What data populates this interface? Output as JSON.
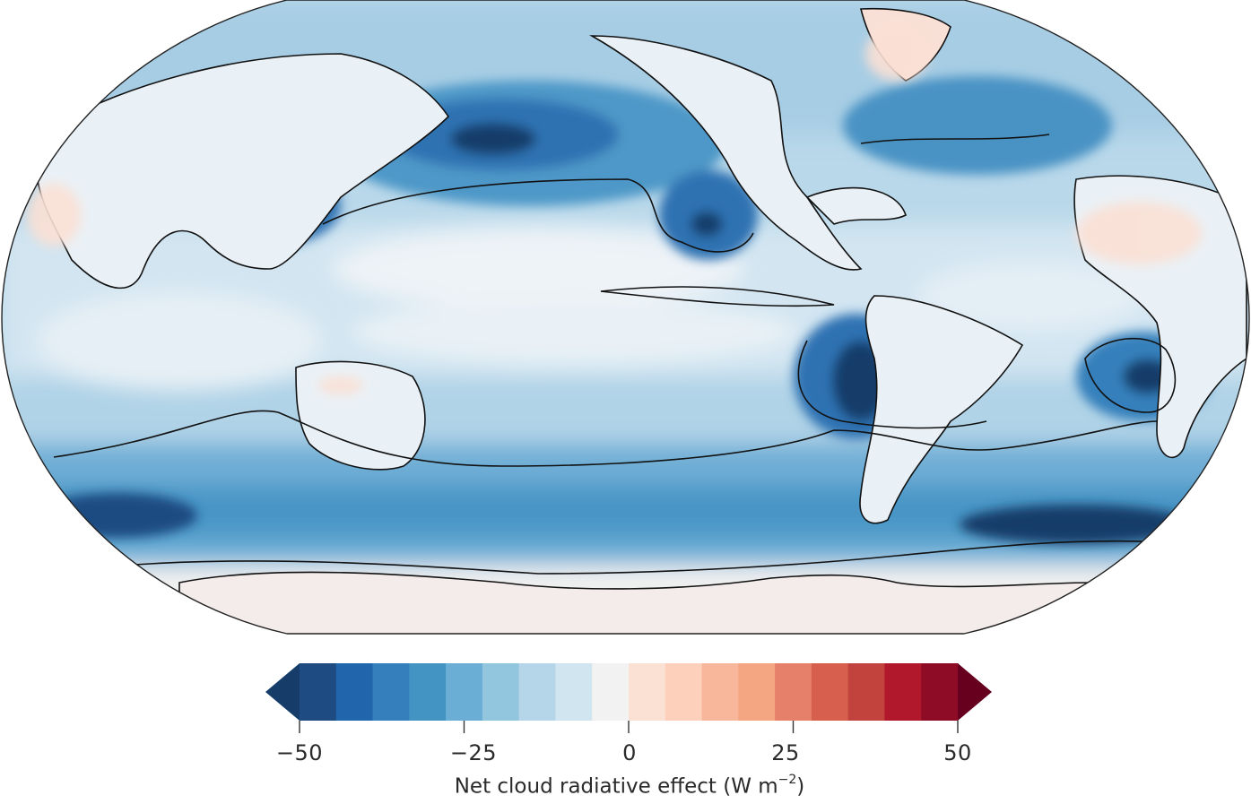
{
  "map": {
    "projection": "Robinson",
    "central_longitude": 180,
    "contour_lines": "black",
    "land_outlines": "black"
  },
  "colorbar": {
    "label_text": "Net cloud radiative effect (W m",
    "label_exponent": "−2",
    "label_close": ")",
    "ticks": [
      {
        "value": -50,
        "label": "−50"
      },
      {
        "value": -25,
        "label": "−25"
      },
      {
        "value": 0,
        "label": "0"
      },
      {
        "value": 25,
        "label": "25"
      },
      {
        "value": 50,
        "label": "50"
      }
    ],
    "range": [
      -50,
      50
    ],
    "extend": "both",
    "under_color": "#163d6a",
    "over_color": "#67001f",
    "colors": [
      "#1d4b82",
      "#2166ac",
      "#3580bc",
      "#4393c3",
      "#6aaed6",
      "#92c5de",
      "#b5d6e8",
      "#d1e5f0",
      "#f2f2f2",
      "#fbe0d4",
      "#fdd0bc",
      "#f8b79b",
      "#f4a582",
      "#e6806b",
      "#d6604d",
      "#c2423d",
      "#b2182b",
      "#8e0c25"
    ]
  }
}
